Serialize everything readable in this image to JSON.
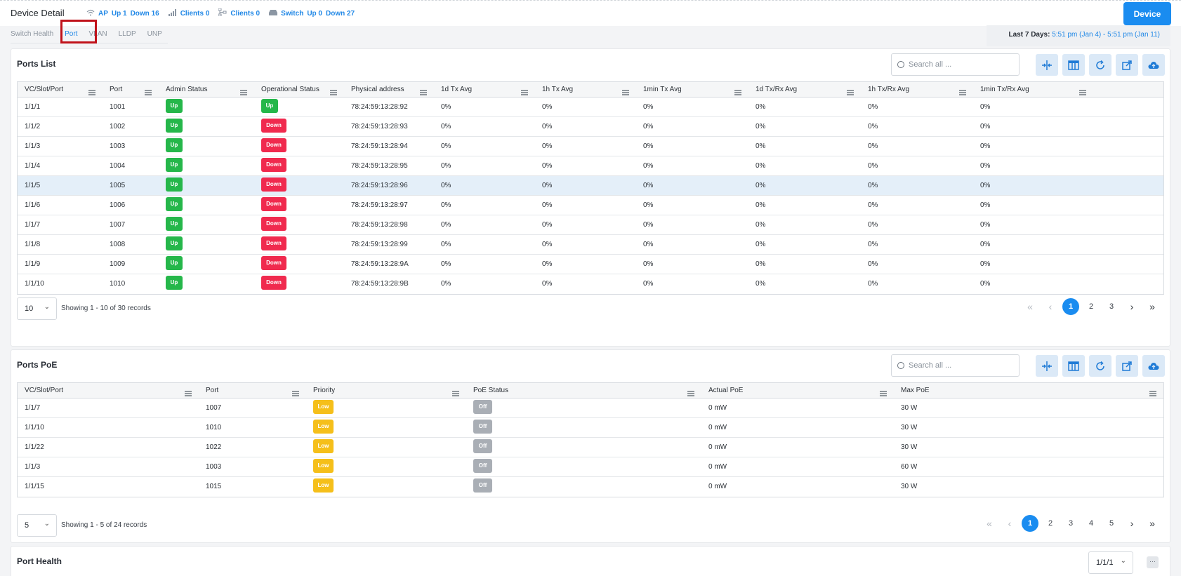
{
  "header": {
    "title": "Device Detail",
    "stats": {
      "ap_label": "AP",
      "ap_up": "Up 1",
      "ap_down": "Down 16",
      "clients_wifi": "Clients 0",
      "clients_wired": "Clients 0",
      "switch_label": "Switch",
      "switch_up": "Up 0",
      "switch_down": "Down 27"
    },
    "device_button": "Device"
  },
  "tabs": [
    "Switch Health",
    "Port",
    "VLAN",
    "LLDP",
    "UNP"
  ],
  "active_tab": "Port",
  "date_range": {
    "label": "Last 7 Days:",
    "value": "5:51 pm (Jan 4) - 5:51 pm (Jan 11)"
  },
  "ports_list": {
    "title": "Ports List",
    "search_placeholder": "Search all ...",
    "columns": [
      "VC/Slot/Port",
      "Port",
      "Admin Status",
      "Operational Status",
      "Physical address",
      "1d Tx Avg",
      "1h Tx Avg",
      "1min Tx Avg",
      "1d Tx/Rx Avg",
      "1h Tx/Rx Avg",
      "1min Tx/Rx Avg"
    ],
    "rows": [
      [
        "1/1/1",
        "1001",
        "Up",
        "Up",
        "78:24:59:13:28:92",
        "0%",
        "0%",
        "0%",
        "0%",
        "0%",
        "0%"
      ],
      [
        "1/1/2",
        "1002",
        "Up",
        "Down",
        "78:24:59:13:28:93",
        "0%",
        "0%",
        "0%",
        "0%",
        "0%",
        "0%"
      ],
      [
        "1/1/3",
        "1003",
        "Up",
        "Down",
        "78:24:59:13:28:94",
        "0%",
        "0%",
        "0%",
        "0%",
        "0%",
        "0%"
      ],
      [
        "1/1/4",
        "1004",
        "Up",
        "Down",
        "78:24:59:13:28:95",
        "0%",
        "0%",
        "0%",
        "0%",
        "0%",
        "0%"
      ],
      [
        "1/1/5",
        "1005",
        "Up",
        "Down",
        "78:24:59:13:28:96",
        "0%",
        "0%",
        "0%",
        "0%",
        "0%",
        "0%"
      ],
      [
        "1/1/6",
        "1006",
        "Up",
        "Down",
        "78:24:59:13:28:97",
        "0%",
        "0%",
        "0%",
        "0%",
        "0%",
        "0%"
      ],
      [
        "1/1/7",
        "1007",
        "Up",
        "Down",
        "78:24:59:13:28:98",
        "0%",
        "0%",
        "0%",
        "0%",
        "0%",
        "0%"
      ],
      [
        "1/1/8",
        "1008",
        "Up",
        "Down",
        "78:24:59:13:28:99",
        "0%",
        "0%",
        "0%",
        "0%",
        "0%",
        "0%"
      ],
      [
        "1/1/9",
        "1009",
        "Up",
        "Down",
        "78:24:59:13:28:9A",
        "0%",
        "0%",
        "0%",
        "0%",
        "0%",
        "0%"
      ],
      [
        "1/1/10",
        "1010",
        "Up",
        "Down",
        "78:24:59:13:28:9B",
        "0%",
        "0%",
        "0%",
        "0%",
        "0%",
        "0%"
      ]
    ],
    "selected_row": 4,
    "page_size": "10",
    "showing": "Showing 1 - 10 of 30 records",
    "pages": [
      "1",
      "2",
      "3"
    ],
    "current_page": "1"
  },
  "ports_poe": {
    "title": "Ports PoE",
    "search_placeholder": "Search all ...",
    "columns": [
      "VC/Slot/Port",
      "Port",
      "Priority",
      "PoE Status",
      "Actual PoE",
      "Max PoE"
    ],
    "rows": [
      [
        "1/1/7",
        "1007",
        "Low",
        "Off",
        "0 mW",
        "30 W"
      ],
      [
        "1/1/10",
        "1010",
        "Low",
        "Off",
        "0 mW",
        "30 W"
      ],
      [
        "1/1/22",
        "1022",
        "Low",
        "Off",
        "0 mW",
        "30 W"
      ],
      [
        "1/1/3",
        "1003",
        "Low",
        "Off",
        "0 mW",
        "60 W"
      ],
      [
        "1/1/15",
        "1015",
        "Low",
        "Off",
        "0 mW",
        "30 W"
      ]
    ],
    "page_size": "5",
    "showing": "Showing 1 - 5 of 24 records",
    "pages": [
      "1",
      "2",
      "3",
      "4",
      "5"
    ],
    "current_page": "1"
  },
  "port_health": {
    "title": "Port Health",
    "selected_port": "1/1/1"
  },
  "colors": {
    "primary": "#1a8cf0",
    "status_up": "#25b74a",
    "status_down": "#f02a4e",
    "priority_low": "#f5bf1a",
    "poe_off": "#a9aeb5",
    "tab_highlight": "#c0121a"
  },
  "icons": {
    "toolbar": [
      "collapse-columns-icon",
      "column-settings-icon",
      "refresh-icon",
      "external-link-icon",
      "export-icon"
    ],
    "column_menu": "hamburger-menu-icon"
  }
}
